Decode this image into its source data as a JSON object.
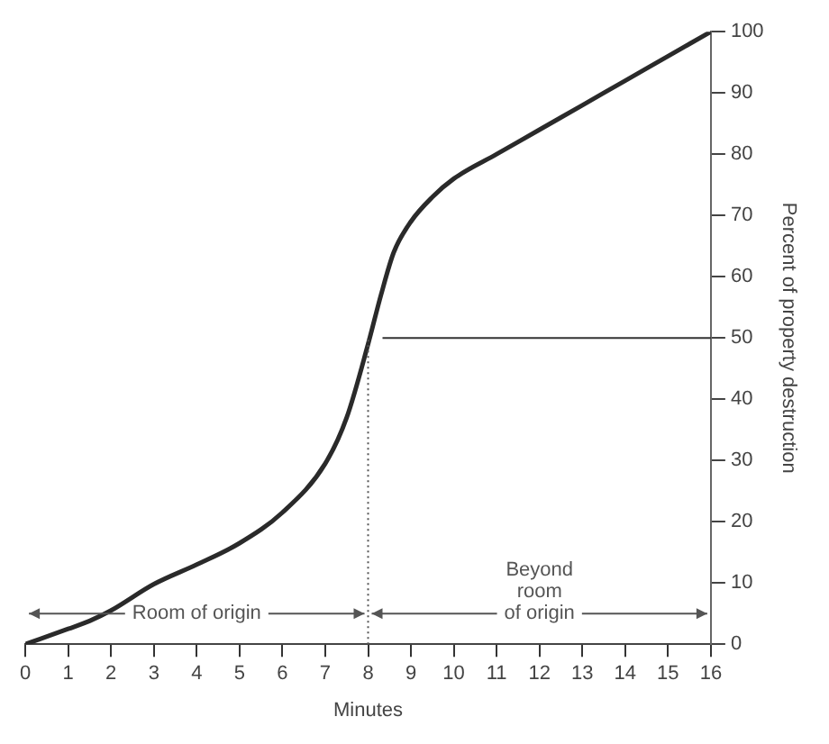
{
  "chart_data": {
    "type": "line",
    "xlabel": "Minutes",
    "ylabel": "Percent of property destruction",
    "x": [
      0,
      1,
      1.5,
      2,
      3,
      4,
      5,
      6,
      7,
      7.5,
      8,
      8.3,
      8.6,
      9,
      9.5,
      10,
      11,
      12,
      13,
      14,
      15,
      16
    ],
    "values": [
      0,
      2.5,
      3.8,
      5.5,
      9.8,
      13,
      16.5,
      21.5,
      29.5,
      37,
      49,
      57,
      64,
      69,
      73,
      76,
      80,
      84,
      88,
      92,
      96,
      100
    ],
    "color": "#2a2a2a",
    "xlim": [
      0,
      16
    ],
    "xticks": [
      0,
      1,
      2,
      3,
      4,
      5,
      6,
      7,
      8,
      9,
      10,
      11,
      12,
      13,
      14,
      15,
      16
    ],
    "ylim": [
      0,
      100
    ],
    "yticks": [
      0,
      10,
      20,
      30,
      40,
      50,
      60,
      70,
      80,
      90,
      100
    ],
    "grid": false,
    "legend": false,
    "marker": "none",
    "line_style": "solid",
    "ref_lines": [
      {
        "axis": "x",
        "value": 8,
        "color": "#555555",
        "line_style": "dotted"
      },
      {
        "axis": "y",
        "value": 50,
        "color": "#333333",
        "line_style": "solid"
      }
    ],
    "annotations": [
      {
        "text": "Room of origin",
        "x": 8,
        "y": 5
      },
      {
        "text": "Beyond room of origin",
        "x": 8,
        "y": 5
      }
    ]
  }
}
